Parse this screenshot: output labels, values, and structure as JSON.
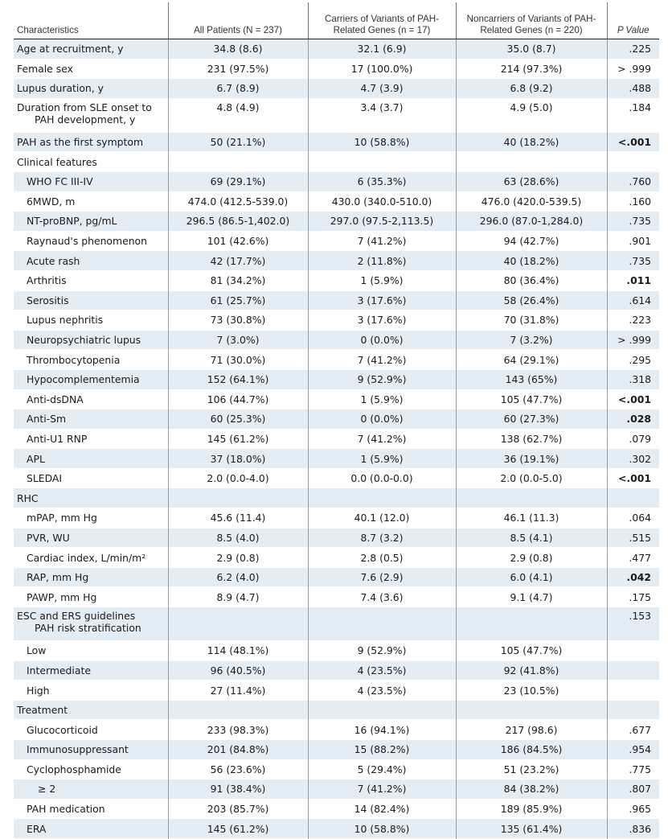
{
  "header": {
    "characteristics": "Characteristics",
    "all": "All Patients (N = 237)",
    "carriers": "Carriers of Variants of PAH-Related Genes (n = 17)",
    "noncarriers": "Noncarriers of Variants of PAH-Related Genes (n = 220)",
    "pvalue": "P Value"
  },
  "rows": [
    {
      "label": "Age at recruitment, y",
      "all": "34.8 (8.6)",
      "carriers": "32.1 (6.9)",
      "noncarriers": "35.0 (8.7)",
      "p": ".225",
      "bold": false,
      "indent": false,
      "shade": true
    },
    {
      "label": "Female sex",
      "all": "231 (97.5%)",
      "carriers": "17 (100.0%)",
      "noncarriers": "214 (97.3%)",
      "p": "> .999",
      "bold": false,
      "indent": false,
      "shade": false
    },
    {
      "label": "Lupus duration, y",
      "all": "6.7 (8.9)",
      "carriers": "4.7 (3.9)",
      "noncarriers": "6.8 (9.2)",
      "p": ".488",
      "bold": false,
      "indent": false,
      "shade": true
    },
    {
      "label": "Duration from SLE onset to",
      "label2": "PAH development, y",
      "all": "4.8 (4.9)",
      "carriers": "3.4 (3.7)",
      "noncarriers": "4.9 (5.0)",
      "p": ".184",
      "bold": false,
      "indent": false,
      "shade": false
    },
    {
      "label": "PAH as the first symptom",
      "all": "50 (21.1%)",
      "carriers": "10 (58.8%)",
      "noncarriers": "40 (18.2%)",
      "p": "<.001",
      "bold": true,
      "indent": false,
      "shade": true
    },
    {
      "label": "Clinical features",
      "all": "",
      "carriers": "",
      "noncarriers": "",
      "p": "",
      "bold": false,
      "indent": false,
      "shade": false
    },
    {
      "label": "WHO FC III-IV",
      "all": "69 (29.1%)",
      "carriers": "6 (35.3%)",
      "noncarriers": "63 (28.6%)",
      "p": ".760",
      "bold": false,
      "indent": true,
      "shade": true
    },
    {
      "label": "6MWD, m",
      "all": "474.0 (412.5-539.0)",
      "carriers": "430.0 (340.0-510.0)",
      "noncarriers": "476.0 (420.0-539.5)",
      "p": ".160",
      "bold": false,
      "indent": true,
      "shade": false
    },
    {
      "label": "NT-proBNP, pg/mL",
      "all": "296.5 (86.5-1,402.0)",
      "carriers": "297.0 (97.5-2,113.5)",
      "noncarriers": "296.0 (87.0-1,284.0)",
      "p": ".735",
      "bold": false,
      "indent": true,
      "shade": true
    },
    {
      "label": "Raynaud's phenomenon",
      "all": "101 (42.6%)",
      "carriers": "7 (41.2%)",
      "noncarriers": "94 (42.7%)",
      "p": ".901",
      "bold": false,
      "indent": true,
      "shade": false
    },
    {
      "label": "Acute rash",
      "all": "42 (17.7%)",
      "carriers": "2 (11.8%)",
      "noncarriers": "40 (18.2%)",
      "p": ".735",
      "bold": false,
      "indent": true,
      "shade": true
    },
    {
      "label": "Arthritis",
      "all": "81 (34.2%)",
      "carriers": "1 (5.9%)",
      "noncarriers": "80 (36.4%)",
      "p": ".011",
      "bold": true,
      "indent": true,
      "shade": false
    },
    {
      "label": "Serositis",
      "all": "61 (25.7%)",
      "carriers": "3 (17.6%)",
      "noncarriers": "58 (26.4%)",
      "p": ".614",
      "bold": false,
      "indent": true,
      "shade": true
    },
    {
      "label": "Lupus nephritis",
      "all": "73 (30.8%)",
      "carriers": "3 (17.6%)",
      "noncarriers": "70 (31.8%)",
      "p": ".223",
      "bold": false,
      "indent": true,
      "shade": false
    },
    {
      "label": "Neuropsychiatric lupus",
      "all": "7 (3.0%)",
      "carriers": "0 (0.0%)",
      "noncarriers": "7 (3.2%)",
      "p": "> .999",
      "bold": false,
      "indent": true,
      "shade": true
    },
    {
      "label": "Thrombocytopenia",
      "all": "71 (30.0%)",
      "carriers": "7 (41.2%)",
      "noncarriers": "64 (29.1%)",
      "p": ".295",
      "bold": false,
      "indent": true,
      "shade": false
    },
    {
      "label": "Hypocomplementemia",
      "all": "152 (64.1%)",
      "carriers": "9 (52.9%)",
      "noncarriers": "143 (65%)",
      "p": ".318",
      "bold": false,
      "indent": true,
      "shade": true
    },
    {
      "label": "Anti-dsDNA",
      "all": "106 (44.7%)",
      "carriers": "1 (5.9%)",
      "noncarriers": "105 (47.7%)",
      "p": "<.001",
      "bold": true,
      "indent": true,
      "shade": false
    },
    {
      "label": "Anti-Sm",
      "all": "60 (25.3%)",
      "carriers": "0 (0.0%)",
      "noncarriers": "60 (27.3%)",
      "p": ".028",
      "bold": true,
      "indent": true,
      "shade": true
    },
    {
      "label": "Anti-U1 RNP",
      "all": "145 (61.2%)",
      "carriers": "7 (41.2%)",
      "noncarriers": "138 (62.7%)",
      "p": ".079",
      "bold": false,
      "indent": true,
      "shade": false
    },
    {
      "label": "APL",
      "all": "37 (18.0%)",
      "carriers": "1 (5.9%)",
      "noncarriers": "36 (19.1%)",
      "p": ".302",
      "bold": false,
      "indent": true,
      "shade": true
    },
    {
      "label": "SLEDAI",
      "all": "2.0 (0.0-4.0)",
      "carriers": "0.0 (0.0-0.0)",
      "noncarriers": "2.0 (0.0-5.0)",
      "p": "<.001",
      "bold": true,
      "indent": true,
      "shade": false
    },
    {
      "label": "RHC",
      "all": "",
      "carriers": "",
      "noncarriers": "",
      "p": "",
      "bold": false,
      "indent": false,
      "shade": true
    },
    {
      "label": "mPAP, mm Hg",
      "all": "45.6 (11.4)",
      "carriers": "40.1 (12.0)",
      "noncarriers": "46.1 (11.3)",
      "p": ".064",
      "bold": false,
      "indent": true,
      "shade": false
    },
    {
      "label": "PVR, WU",
      "all": "8.5 (4.0)",
      "carriers": "8.7 (3.2)",
      "noncarriers": "8.5 (4.1)",
      "p": ".515",
      "bold": false,
      "indent": true,
      "shade": true
    },
    {
      "label": "Cardiac index, L/min/m²",
      "all": "2.9 (0.8)",
      "carriers": "2.8 (0.5)",
      "noncarriers": "2.9 (0.8)",
      "p": ".477",
      "bold": false,
      "indent": true,
      "shade": false
    },
    {
      "label": "RAP, mm Hg",
      "all": "6.2 (4.0)",
      "carriers": "7.6 (2.9)",
      "noncarriers": "6.0 (4.1)",
      "p": ".042",
      "bold": true,
      "indent": true,
      "shade": true
    },
    {
      "label": "PAWP, mm Hg",
      "all": "8.9 (4.7)",
      "carriers": "7.4 (3.6)",
      "noncarriers": "9.1 (4.7)",
      "p": ".175",
      "bold": false,
      "indent": true,
      "shade": false
    },
    {
      "label": "ESC and ERS guidelines",
      "label2": "PAH risk stratification",
      "all": "",
      "carriers": "",
      "noncarriers": "",
      "p": ".153",
      "bold": false,
      "indent": false,
      "shade": true
    },
    {
      "label": "Low",
      "all": "114 (48.1%)",
      "carriers": "9 (52.9%)",
      "noncarriers": "105 (47.7%)",
      "p": "",
      "bold": false,
      "indent": true,
      "shade": false
    },
    {
      "label": "Intermediate",
      "all": "96 (40.5%)",
      "carriers": "4 (23.5%)",
      "noncarriers": "92 (41.8%)",
      "p": "",
      "bold": false,
      "indent": true,
      "shade": true
    },
    {
      "label": "High",
      "all": "27 (11.4%)",
      "carriers": "4 (23.5%)",
      "noncarriers": "23 (10.5%)",
      "p": "",
      "bold": false,
      "indent": true,
      "shade": false
    },
    {
      "label": "Treatment",
      "all": "",
      "carriers": "",
      "noncarriers": "",
      "p": "",
      "bold": false,
      "indent": false,
      "shade": true
    },
    {
      "label": "Glucocorticoid",
      "all": "233 (98.3%)",
      "carriers": "16 (94.1%)",
      "noncarriers": "217 (98.6)",
      "p": ".677",
      "bold": false,
      "indent": true,
      "shade": false
    },
    {
      "label": "Immunosuppressant",
      "all": "201 (84.8%)",
      "carriers": "15 (88.2%)",
      "noncarriers": "186 (84.5%)",
      "p": ".954",
      "bold": false,
      "indent": true,
      "shade": true
    },
    {
      "label": "Cyclophosphamide",
      "all": "56 (23.6%)",
      "carriers": "5 (29.4%)",
      "noncarriers": "51 (23.2%)",
      "p": ".775",
      "bold": false,
      "indent": true,
      "shade": false
    },
    {
      "label": "≥ 2",
      "all": "91 (38.4%)",
      "carriers": "7 (41.2%)",
      "noncarriers": "84 (38.2%)",
      "p": ".807",
      "bold": false,
      "indent": true,
      "extraIndent": true,
      "shade": true
    },
    {
      "label": "PAH medication",
      "all": "203 (85.7%)",
      "carriers": "14 (82.4%)",
      "noncarriers": "189 (85.9%)",
      "p": ".965",
      "bold": false,
      "indent": true,
      "shade": false
    },
    {
      "label": "ERA",
      "all": "145 (61.2%)",
      "carriers": "10 (58.8%)",
      "noncarriers": "135 (61.4%)",
      "p": ".836",
      "bold": false,
      "indent": true,
      "shade": true
    }
  ]
}
